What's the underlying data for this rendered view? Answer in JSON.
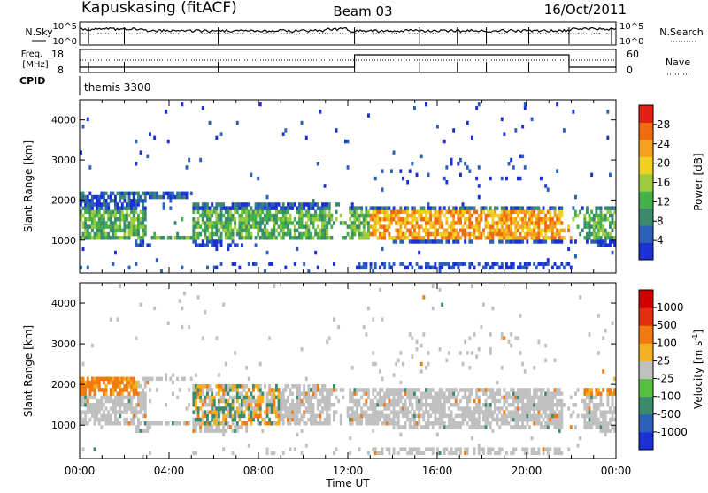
{
  "header": {
    "station": "Kapuskasing (fitACF)",
    "beam": "Beam 03",
    "date": "16/Oct/2011"
  },
  "summary_panels": {
    "nsky_label": "N.Sky",
    "nsky_ticks": [
      "10^5",
      "10^0"
    ],
    "nsearch_label": "N.Search",
    "nsearch_ticks": [
      "10^5",
      "10^0"
    ],
    "freq_label": "Freq.",
    "freq_unit": "[MHz]",
    "freq_ticks": [
      "18",
      "8"
    ],
    "nave_label": "Nave",
    "nave_ticks": [
      "60",
      "0"
    ],
    "cpid_label": "CPID",
    "cpid_value": "themis 3300"
  },
  "chart_data": [
    {
      "type": "heatmap",
      "name": "power",
      "ylabel": "Slant Range [km]",
      "xlabel": "",
      "xlim": [
        0,
        24
      ],
      "ylim": [
        180,
        4500
      ],
      "yticks": [
        "1000",
        "2000",
        "3000",
        "4000"
      ],
      "colorbar": {
        "label": "Power [dB]",
        "ticks": [
          "28",
          "24",
          "20",
          "16",
          "12",
          "8",
          "4"
        ],
        "range": [
          0,
          30
        ],
        "colors": [
          "#1a2fd6",
          "#2b5fb8",
          "#3a8a6e",
          "#44b04a",
          "#9ccc3c",
          "#f0d020",
          "#f4a020",
          "#f06a10",
          "#e02010"
        ]
      }
    },
    {
      "type": "heatmap",
      "name": "velocity",
      "ylabel": "Slant Range [km]",
      "xlabel": "Time UT",
      "xlim": [
        0,
        24
      ],
      "ylim": [
        180,
        4500
      ],
      "xticks": [
        "00:00",
        "04:00",
        "08:00",
        "12:00",
        "16:00",
        "20:00",
        "00:00"
      ],
      "yticks": [
        "1000",
        "2000",
        "3000",
        "4000"
      ],
      "colorbar": {
        "label": "Velocity [m s",
        "label_sup": "-1",
        "label_end": "]",
        "ticks": [
          "1000",
          "500",
          "100",
          "25",
          "-25",
          "-100",
          "-500",
          "-1000"
        ],
        "colors": [
          "#1a2fd6",
          "#2b5fb8",
          "#3a8a6e",
          "#55c040",
          "#c0c0c0",
          "#f4b020",
          "#f07a10",
          "#e03010",
          "#d00000"
        ]
      }
    }
  ]
}
